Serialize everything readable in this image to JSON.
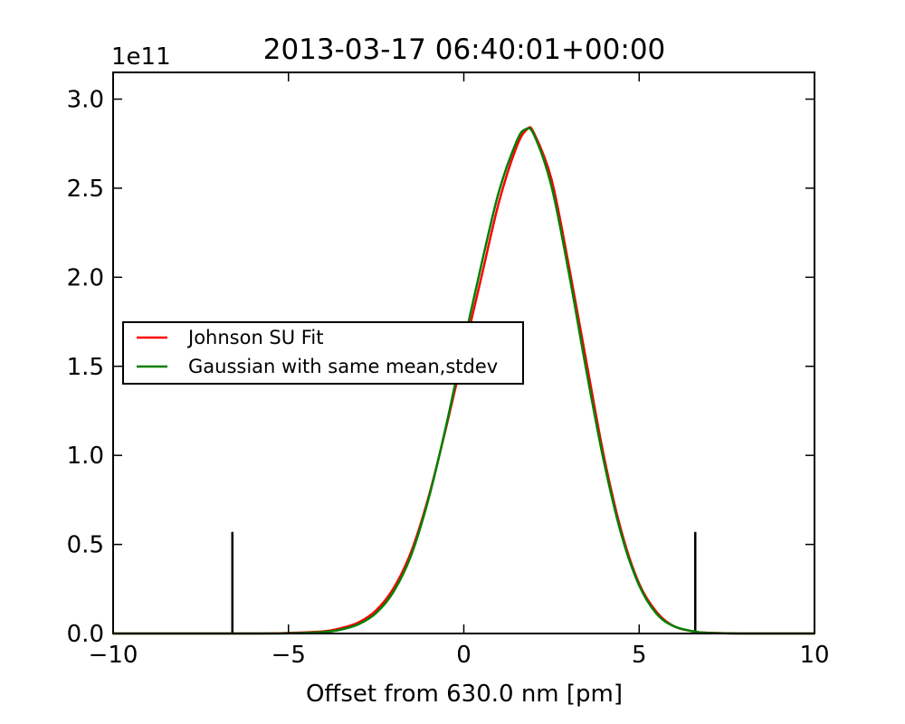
{
  "chart_data": {
    "type": "line",
    "title": "2013-03-17 06:40:01+00:00",
    "xlabel": "Offset from 630.0 nm [pm]",
    "ylabel": "",
    "y_offset_text": "1e11",
    "y_scale": 100000000000.0,
    "xlim": [
      -10,
      10
    ],
    "ylim": [
      0,
      3.15
    ],
    "xticks": [
      -10,
      -5,
      0,
      5,
      10
    ],
    "xtick_labels": [
      "−10",
      "−5",
      "0",
      "5",
      "10"
    ],
    "yticks": [
      0.0,
      0.5,
      1.0,
      1.5,
      2.0,
      2.5,
      3.0
    ],
    "ytick_labels": [
      "0.0",
      "0.5",
      "1.0",
      "1.5",
      "2.0",
      "2.5",
      "3.0"
    ],
    "grid": false,
    "legend_position": "center-left",
    "series": [
      {
        "name": "Johnson SU Fit",
        "color": "#ff0000",
        "x": [
          -10,
          -6,
          -5,
          -4,
          -3.5,
          -3,
          -2.5,
          -2,
          -1.5,
          -1,
          -0.5,
          0,
          0.5,
          1,
          1.5,
          1.8,
          2,
          2.5,
          3,
          3.5,
          4,
          4.5,
          5,
          5.5,
          6,
          6.6,
          7,
          8,
          10
        ],
        "y": [
          0,
          0,
          0.003,
          0.012,
          0.03,
          0.062,
          0.13,
          0.255,
          0.46,
          0.77,
          1.16,
          1.58,
          2.0,
          2.42,
          2.73,
          2.83,
          2.81,
          2.55,
          2.06,
          1.52,
          0.99,
          0.57,
          0.28,
          0.12,
          0.04,
          0.01,
          0.004,
          0,
          0
        ]
      },
      {
        "name": "Gaussian with same mean,stdev",
        "color": "#008000",
        "x": [
          -10,
          -6,
          -5,
          -4,
          -3.5,
          -3,
          -2.5,
          -2,
          -1.5,
          -1,
          -0.5,
          0,
          0.5,
          1,
          1.5,
          1.75,
          2,
          2.5,
          3,
          3.5,
          4,
          4.5,
          5,
          5.5,
          6,
          6.6,
          7,
          8,
          10
        ],
        "y": [
          0,
          0,
          0.001,
          0.008,
          0.022,
          0.052,
          0.115,
          0.236,
          0.44,
          0.76,
          1.17,
          1.63,
          2.07,
          2.48,
          2.76,
          2.83,
          2.8,
          2.51,
          2.02,
          1.47,
          0.96,
          0.55,
          0.27,
          0.11,
          0.04,
          0.01,
          0.003,
          0,
          0
        ]
      }
    ],
    "vlines": [
      {
        "x": -6.6,
        "y0": 0,
        "y1": 0.57,
        "color": "#000000"
      },
      {
        "x": 6.6,
        "y0": 0,
        "y1": 0.57,
        "color": "#000000"
      }
    ]
  }
}
